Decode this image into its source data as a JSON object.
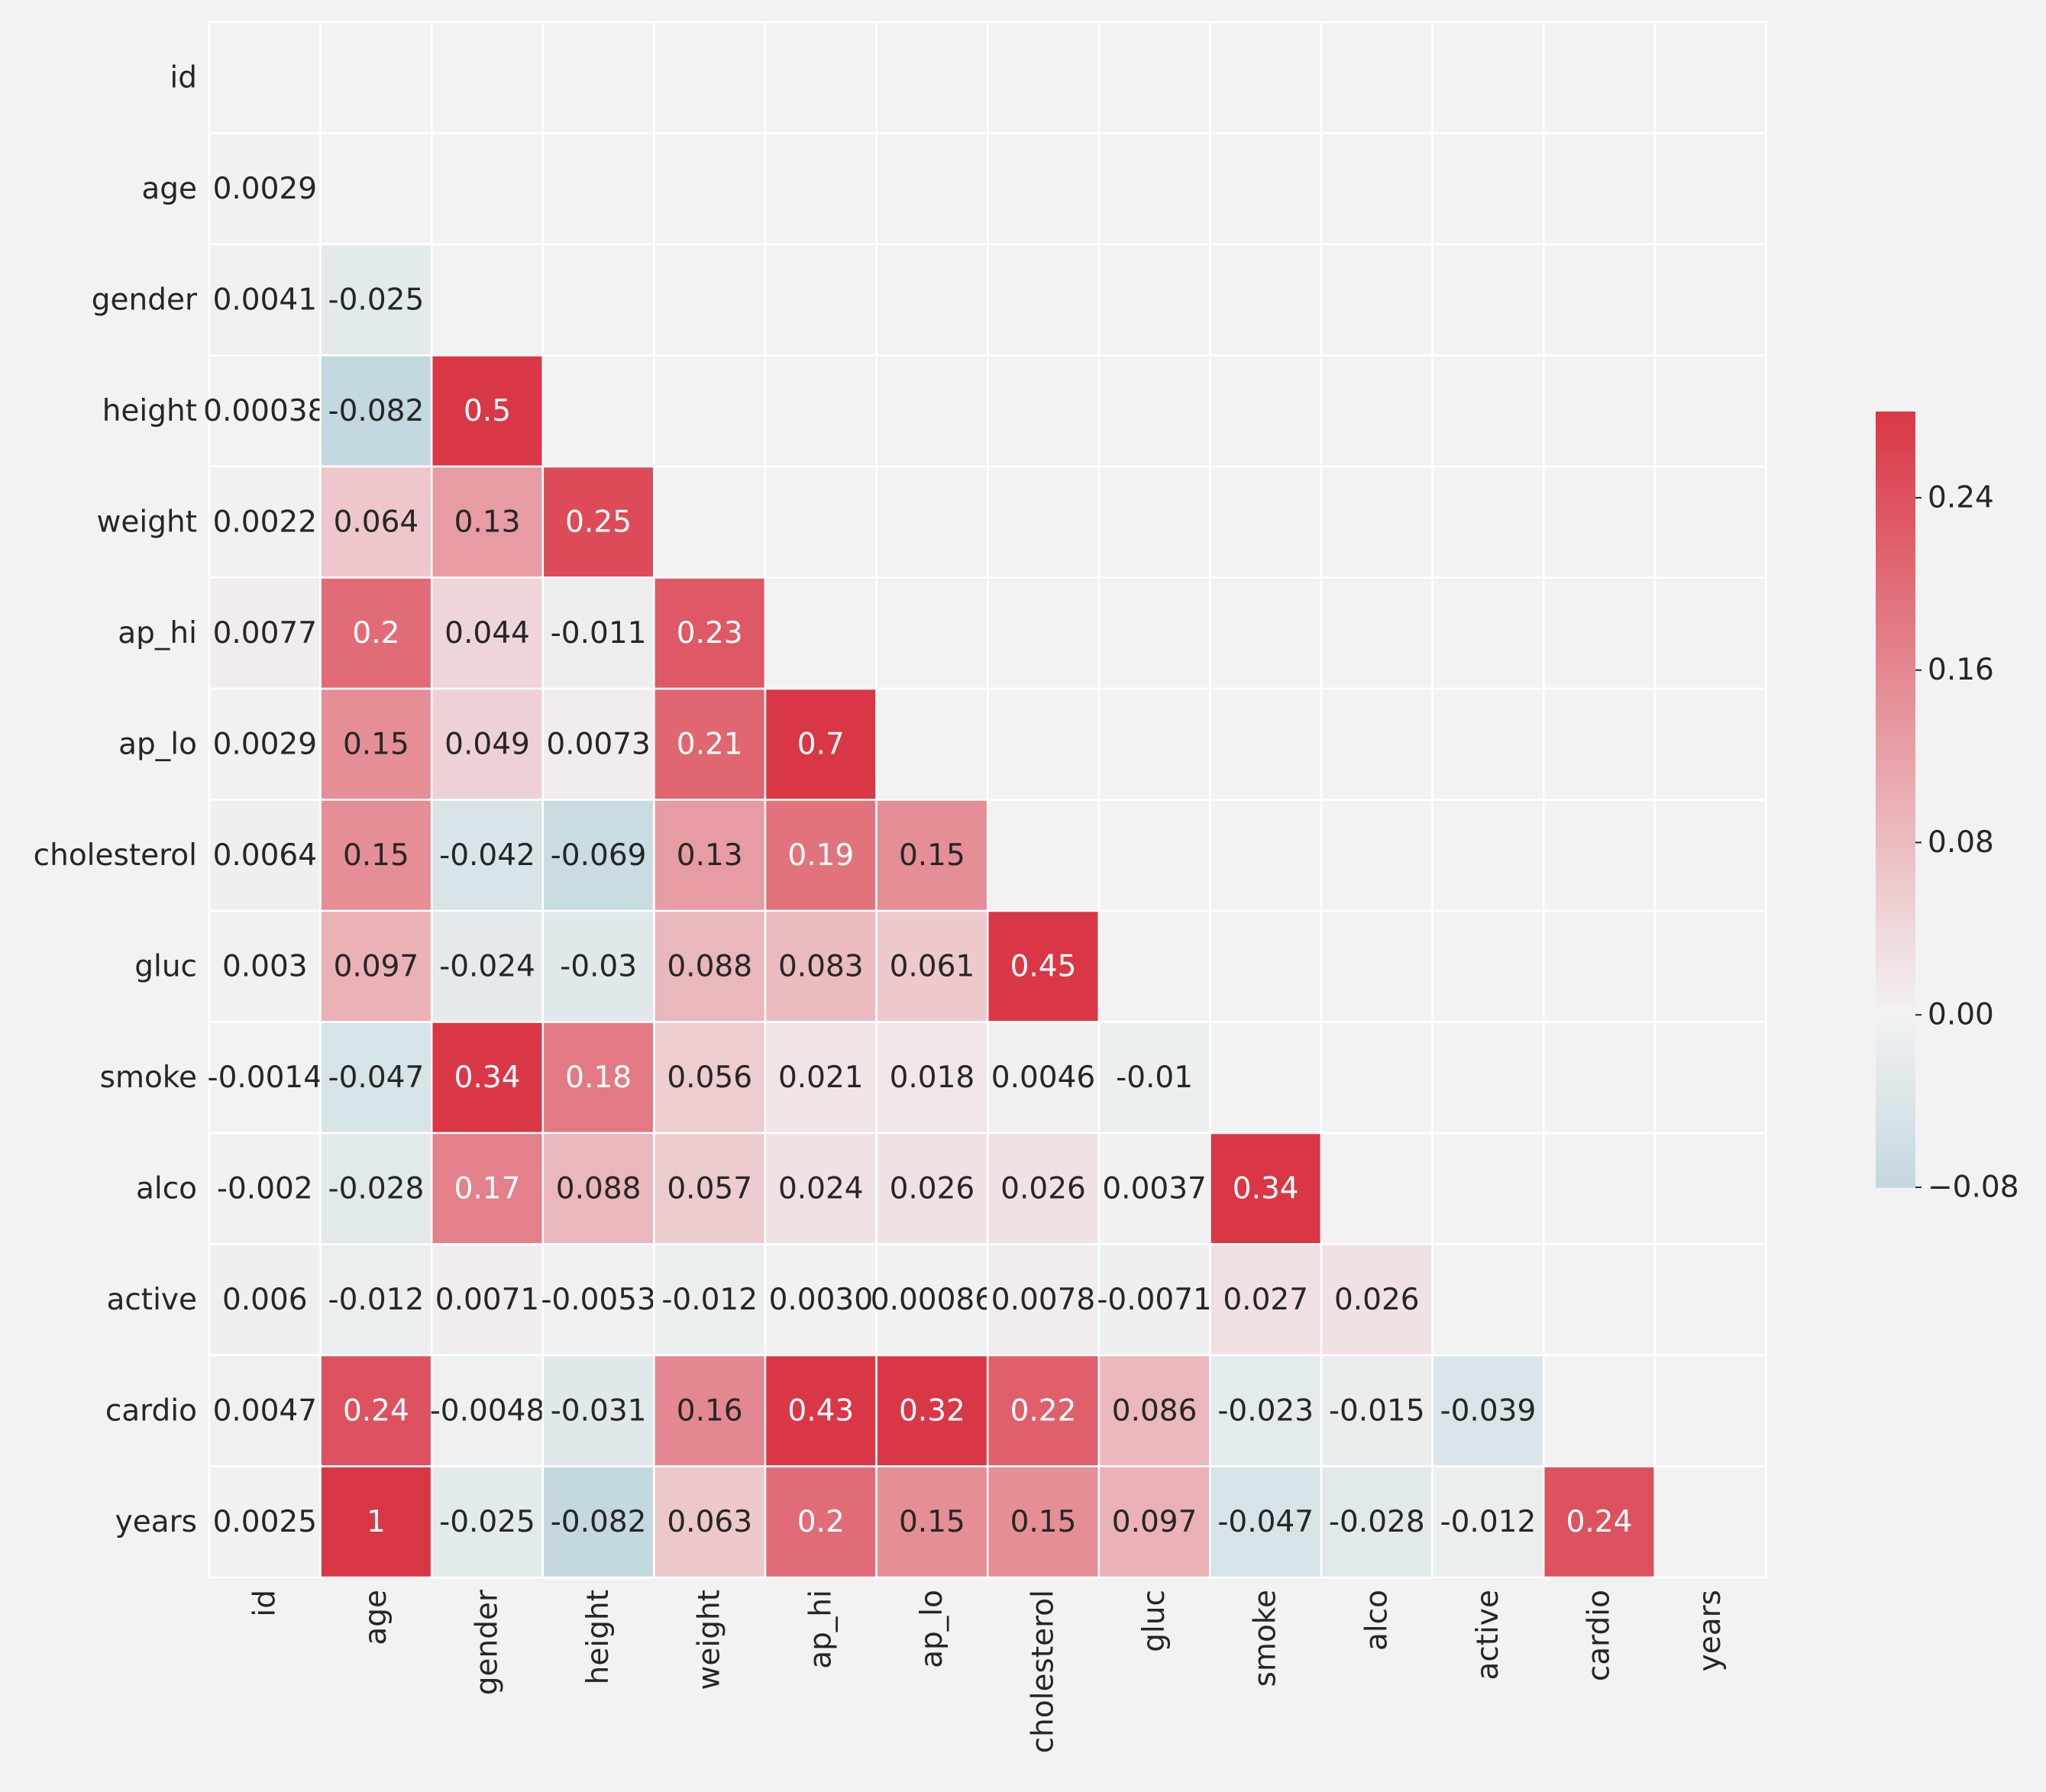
{
  "chart_data": {
    "type": "heatmap",
    "title": "",
    "xlabel": "",
    "ylabel": "",
    "rows": [
      "id",
      "age",
      "gender",
      "height",
      "weight",
      "ap_hi",
      "ap_lo",
      "cholesterol",
      "gluc",
      "smoke",
      "alco",
      "active",
      "cardio",
      "years"
    ],
    "columns": [
      "id",
      "age",
      "gender",
      "height",
      "weight",
      "ap_hi",
      "ap_lo",
      "cholesterol",
      "gluc",
      "smoke",
      "alco",
      "active",
      "cardio",
      "years"
    ],
    "mask": "upper-triangle-including-diagonal",
    "values": [
      [
        null,
        null,
        null,
        null,
        null,
        null,
        null,
        null,
        null,
        null,
        null,
        null,
        null,
        null
      ],
      [
        0.0029,
        null,
        null,
        null,
        null,
        null,
        null,
        null,
        null,
        null,
        null,
        null,
        null,
        null
      ],
      [
        0.0041,
        -0.025,
        null,
        null,
        null,
        null,
        null,
        null,
        null,
        null,
        null,
        null,
        null,
        null
      ],
      [
        0.00038,
        -0.082,
        0.5,
        null,
        null,
        null,
        null,
        null,
        null,
        null,
        null,
        null,
        null,
        null
      ],
      [
        0.0022,
        0.064,
        0.13,
        0.25,
        null,
        null,
        null,
        null,
        null,
        null,
        null,
        null,
        null,
        null
      ],
      [
        0.0077,
        0.2,
        0.044,
        -0.011,
        0.23,
        null,
        null,
        null,
        null,
        null,
        null,
        null,
        null,
        null
      ],
      [
        0.0029,
        0.15,
        0.049,
        0.0073,
        0.21,
        0.7,
        null,
        null,
        null,
        null,
        null,
        null,
        null,
        null
      ],
      [
        0.0064,
        0.15,
        -0.042,
        -0.069,
        0.13,
        0.19,
        0.15,
        null,
        null,
        null,
        null,
        null,
        null,
        null
      ],
      [
        0.003,
        0.097,
        -0.024,
        -0.03,
        0.088,
        0.083,
        0.061,
        0.45,
        null,
        null,
        null,
        null,
        null,
        null
      ],
      [
        -0.0014,
        -0.047,
        0.34,
        0.18,
        0.056,
        0.021,
        0.018,
        0.0046,
        -0.01,
        null,
        null,
        null,
        null,
        null
      ],
      [
        -0.002,
        -0.028,
        0.17,
        0.088,
        0.057,
        0.024,
        0.026,
        0.026,
        0.0037,
        0.34,
        null,
        null,
        null,
        null
      ],
      [
        0.006,
        -0.012,
        0.0071,
        -0.0053,
        -0.012,
        0.003,
        0.00086,
        0.0078,
        -0.0071,
        0.027,
        0.026,
        null,
        null,
        null
      ],
      [
        0.0047,
        0.24,
        -0.0048,
        -0.031,
        0.16,
        0.43,
        0.32,
        0.22,
        0.086,
        -0.023,
        -0.015,
        -0.039,
        null,
        null
      ],
      [
        0.0025,
        1,
        -0.025,
        -0.082,
        0.063,
        0.2,
        0.15,
        0.15,
        0.097,
        -0.047,
        -0.028,
        -0.012,
        0.24,
        null
      ]
    ],
    "labels": [
      [
        null,
        null,
        null,
        null,
        null,
        null,
        null,
        null,
        null,
        null,
        null,
        null,
        null,
        null
      ],
      [
        "0.0029",
        null,
        null,
        null,
        null,
        null,
        null,
        null,
        null,
        null,
        null,
        null,
        null,
        null
      ],
      [
        "0.0041",
        "-0.025",
        null,
        null,
        null,
        null,
        null,
        null,
        null,
        null,
        null,
        null,
        null,
        null
      ],
      [
        "0.00038",
        "-0.082",
        "0.5",
        null,
        null,
        null,
        null,
        null,
        null,
        null,
        null,
        null,
        null,
        null
      ],
      [
        "0.0022",
        "0.064",
        "0.13",
        "0.25",
        null,
        null,
        null,
        null,
        null,
        null,
        null,
        null,
        null,
        null
      ],
      [
        "0.0077",
        "0.2",
        "0.044",
        "-0.011",
        "0.23",
        null,
        null,
        null,
        null,
        null,
        null,
        null,
        null,
        null
      ],
      [
        "0.0029",
        "0.15",
        "0.049",
        "0.0073",
        "0.21",
        "0.7",
        null,
        null,
        null,
        null,
        null,
        null,
        null,
        null
      ],
      [
        "0.0064",
        "0.15",
        "-0.042",
        "-0.069",
        "0.13",
        "0.19",
        "0.15",
        null,
        null,
        null,
        null,
        null,
        null,
        null
      ],
      [
        "0.003",
        "0.097",
        "-0.024",
        "-0.03",
        "0.088",
        "0.083",
        "0.061",
        "0.45",
        null,
        null,
        null,
        null,
        null,
        null
      ],
      [
        "-0.0014",
        "-0.047",
        "0.34",
        "0.18",
        "0.056",
        "0.021",
        "0.018",
        "0.0046",
        "-0.01",
        null,
        null,
        null,
        null,
        null
      ],
      [
        "-0.002",
        "-0.028",
        "0.17",
        "0.088",
        "0.057",
        "0.024",
        "0.026",
        "0.026",
        "0.0037",
        "0.34",
        null,
        null,
        null,
        null
      ],
      [
        "0.006",
        "-0.012",
        "0.0071",
        "-0.0053",
        "-0.012",
        "0.0030",
        "0.00086",
        "0.0078",
        "-0.0071",
        "0.027",
        "0.026",
        null,
        null,
        null
      ],
      [
        "0.0047",
        "0.24",
        "-0.0048",
        "-0.031",
        "0.16",
        "0.43",
        "0.32",
        "0.22",
        "0.086",
        "-0.023",
        "-0.015",
        "-0.039",
        null,
        null
      ],
      [
        "0.0025",
        "1",
        "-0.025",
        "-0.082",
        "0.063",
        "0.2",
        "0.15",
        "0.15",
        "0.097",
        "-0.047",
        "-0.028",
        "-0.012",
        "0.24",
        null
      ]
    ],
    "colorbar": {
      "vmin": -0.08,
      "vmax": 0.28,
      "center": 0,
      "ticks": [
        -0.08,
        0.0,
        0.08,
        0.16,
        0.24
      ],
      "tick_labels": [
        "−0.08",
        "0.00",
        "0.08",
        "0.16",
        "0.24"
      ],
      "neg_color": "#c3d8df",
      "center_color": "#f2f2f2",
      "pos_color": "#da3746",
      "dark_text_color": "#262626",
      "light_text_color": "#ffffff",
      "placement": "right"
    },
    "grid": false,
    "background_color": "#f2f2f2"
  }
}
